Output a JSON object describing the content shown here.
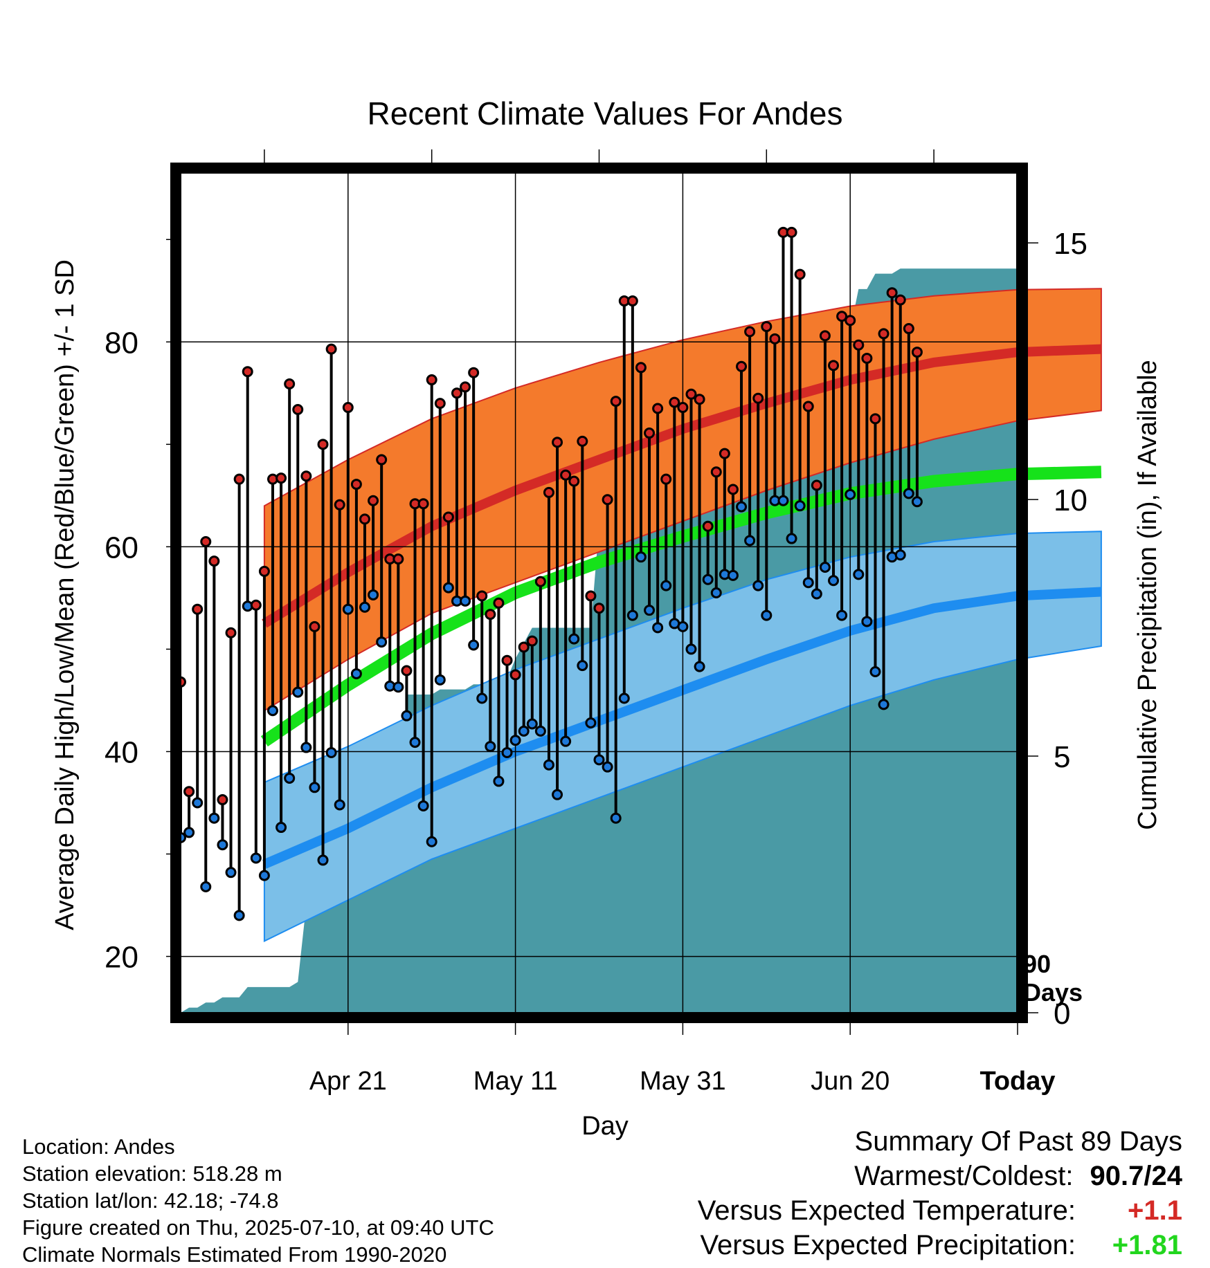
{
  "chart_data": {
    "type": "line",
    "title": "Recent Climate Values For Andes",
    "xlabel": "Day",
    "ylabel": "Average Daily High/Low/Mean (Red/Blue/Green) +/- 1 SD",
    "ylabel_right": "Cumulative Precipitation (in), If Available",
    "x_ticks": [
      "Apr 21",
      "May 11",
      "May 31",
      "Jun 20",
      "Today"
    ],
    "y_ticks": [
      20,
      40,
      60,
      80
    ],
    "y2_ticks": [
      0,
      5,
      10,
      15
    ],
    "ylim": [
      14.5,
      96.5
    ],
    "y2lim": [
      0,
      15.5
    ],
    "xlim": [
      -10,
      90
    ],
    "x_tick_days": [
      10,
      30,
      50,
      70,
      90
    ],
    "today_marker_text": [
      "90",
      "Days"
    ],
    "colors": {
      "high_band": "#f47a2c",
      "high_mean": "#d42a26",
      "low_band": "#7bbfe8",
      "low_mean": "#1e8df0",
      "mean": "#16e21a",
      "precip": "#4a9aa5",
      "high_dot": "#d42a26",
      "low_dot": "#1e78d8"
    },
    "normals": {
      "days": [
        0,
        10,
        20,
        30,
        40,
        50,
        60,
        70,
        80,
        90,
        100
      ],
      "high_mean": [
        52.5,
        57.5,
        62.0,
        65.5,
        68.5,
        71.5,
        74.0,
        76.3,
        78.0,
        79.0,
        79.3
      ],
      "high_upper": [
        64.0,
        68.5,
        72.5,
        75.5,
        78.0,
        80.2,
        82.0,
        83.5,
        84.5,
        85.1,
        85.2
      ],
      "high_lower": [
        44.0,
        49.0,
        53.5,
        56.5,
        59.5,
        62.5,
        65.5,
        68.2,
        70.5,
        72.3,
        73.3
      ],
      "mean": [
        41.0,
        46.5,
        51.5,
        55.5,
        58.5,
        61.0,
        63.3,
        65.2,
        66.4,
        67.1,
        67.3
      ],
      "low_mean": [
        29.0,
        32.5,
        36.5,
        40.0,
        43.0,
        46.0,
        49.0,
        51.8,
        54.0,
        55.2,
        55.6
      ],
      "low_upper": [
        37.0,
        40.5,
        44.5,
        48.0,
        51.0,
        54.0,
        56.8,
        59.0,
        60.5,
        61.3,
        61.5
      ],
      "low_lower": [
        21.5,
        25.5,
        29.5,
        32.5,
        35.5,
        38.5,
        41.5,
        44.5,
        47.0,
        49.0,
        50.3
      ]
    },
    "series": [
      {
        "name": "High",
        "values": [
          46.8,
          36.1,
          53.9,
          60.5,
          58.6,
          35.3,
          51.6,
          66.6,
          77.1,
          54.3,
          57.6,
          66.6,
          66.7,
          75.9,
          73.4,
          66.9,
          52.2,
          70.0,
          79.3,
          64.1,
          73.6,
          66.1,
          62.7,
          64.5,
          68.5,
          58.8,
          58.8,
          47.9,
          64.2,
          64.2,
          76.3,
          74.0,
          62.9,
          75.0,
          75.6,
          77.0,
          55.2,
          53.4,
          54.5,
          48.9,
          47.5,
          50.2,
          50.8,
          56.6,
          65.3,
          70.2,
          67.0,
          66.4,
          70.3,
          55.2,
          54.0,
          64.6,
          74.2,
          84.0,
          84.0,
          77.5,
          71.1,
          73.5,
          66.6,
          74.1,
          73.6,
          74.9,
          74.4,
          62.0,
          67.3,
          69.1,
          65.6,
          77.6,
          81.0,
          74.5,
          81.5,
          80.3,
          90.7,
          90.7,
          86.6,
          73.7,
          66.0,
          80.6,
          77.7,
          82.5,
          82.1,
          79.7,
          78.4,
          72.5,
          80.8,
          84.8,
          84.1,
          81.3,
          79.0
        ]
      },
      {
        "name": "Low",
        "values": [
          31.6,
          32.1,
          35.0,
          26.8,
          33.5,
          30.9,
          28.2,
          24.0,
          54.2,
          29.6,
          27.9,
          44.0,
          32.6,
          37.4,
          45.8,
          40.4,
          36.5,
          29.4,
          39.9,
          34.8,
          53.9,
          47.6,
          54.1,
          55.3,
          50.7,
          46.4,
          46.3,
          43.5,
          40.9,
          34.7,
          31.2,
          47.0,
          56.0,
          54.7,
          54.7,
          50.4,
          45.2,
          40.5,
          37.1,
          39.9,
          41.1,
          42.0,
          42.7,
          42.0,
          38.7,
          35.8,
          41.0,
          51.0,
          48.4,
          42.8,
          39.2,
          38.5,
          33.5,
          45.2,
          53.3,
          59.0,
          53.8,
          52.1,
          56.2,
          52.5,
          52.2,
          50.0,
          48.3,
          56.8,
          55.5,
          57.3,
          57.2,
          63.9,
          60.6,
          56.2,
          53.3,
          64.5,
          64.5,
          60.8,
          64.0,
          56.5,
          55.4,
          58.0,
          56.7,
          53.3,
          65.1,
          57.3,
          52.7,
          47.8,
          44.6,
          59.0,
          59.2,
          65.2,
          64.4
        ]
      },
      {
        "name": "Cumulative Precipitation",
        "values": [
          0.0,
          0.1,
          0.1,
          0.2,
          0.2,
          0.3,
          0.3,
          0.3,
          0.5,
          0.5,
          0.5,
          0.5,
          0.5,
          0.5,
          0.6,
          2.1,
          2.1,
          2.2,
          2.4,
          2.4,
          2.4,
          2.4,
          3.0,
          3.6,
          4.1,
          4.3,
          4.3,
          6.2,
          6.2,
          6.2,
          6.2,
          6.3,
          6.3,
          6.3,
          6.3,
          6.4,
          6.4,
          6.5,
          6.5,
          6.5,
          6.9,
          7.2,
          7.5,
          7.5,
          7.5,
          7.5,
          7.5,
          7.5,
          7.5,
          7.5,
          9.5,
          9.5,
          9.5,
          9.5,
          9.5,
          9.5,
          9.8,
          10.1,
          10.3,
          10.3,
          10.5,
          10.5,
          10.6,
          10.6,
          10.6,
          11.0,
          11.0,
          11.0,
          11.2,
          11.5,
          12.0,
          12.0,
          12.9,
          12.9,
          12.9,
          13.1,
          13.1,
          13.1,
          13.1,
          13.1,
          13.3,
          14.1,
          14.1,
          14.4,
          14.4,
          14.4,
          14.5,
          14.5,
          14.5,
          14.5
        ]
      }
    ]
  },
  "footer": {
    "location": "Location: Andes",
    "elevation": "Station elevation: 518.28 m",
    "latlon": "Station lat/lon: 42.18; -74.8",
    "created": "Figure created on Thu, 2025-07-10, at 09:40 UTC",
    "normals": "Climate Normals Estimated From 1990-2020"
  },
  "summary": {
    "heading": "Summary Of Past 89 Days",
    "warm_cold_label": "Warmest/Coldest:",
    "warm_cold_value": "90.7/24",
    "temp_label": "Versus Expected Temperature:",
    "temp_value": "+1.1",
    "precip_label": "Versus Expected Precipitation:",
    "precip_value": "+1.81",
    "temp_color": "#d42a26",
    "precip_color": "#22d61e"
  }
}
